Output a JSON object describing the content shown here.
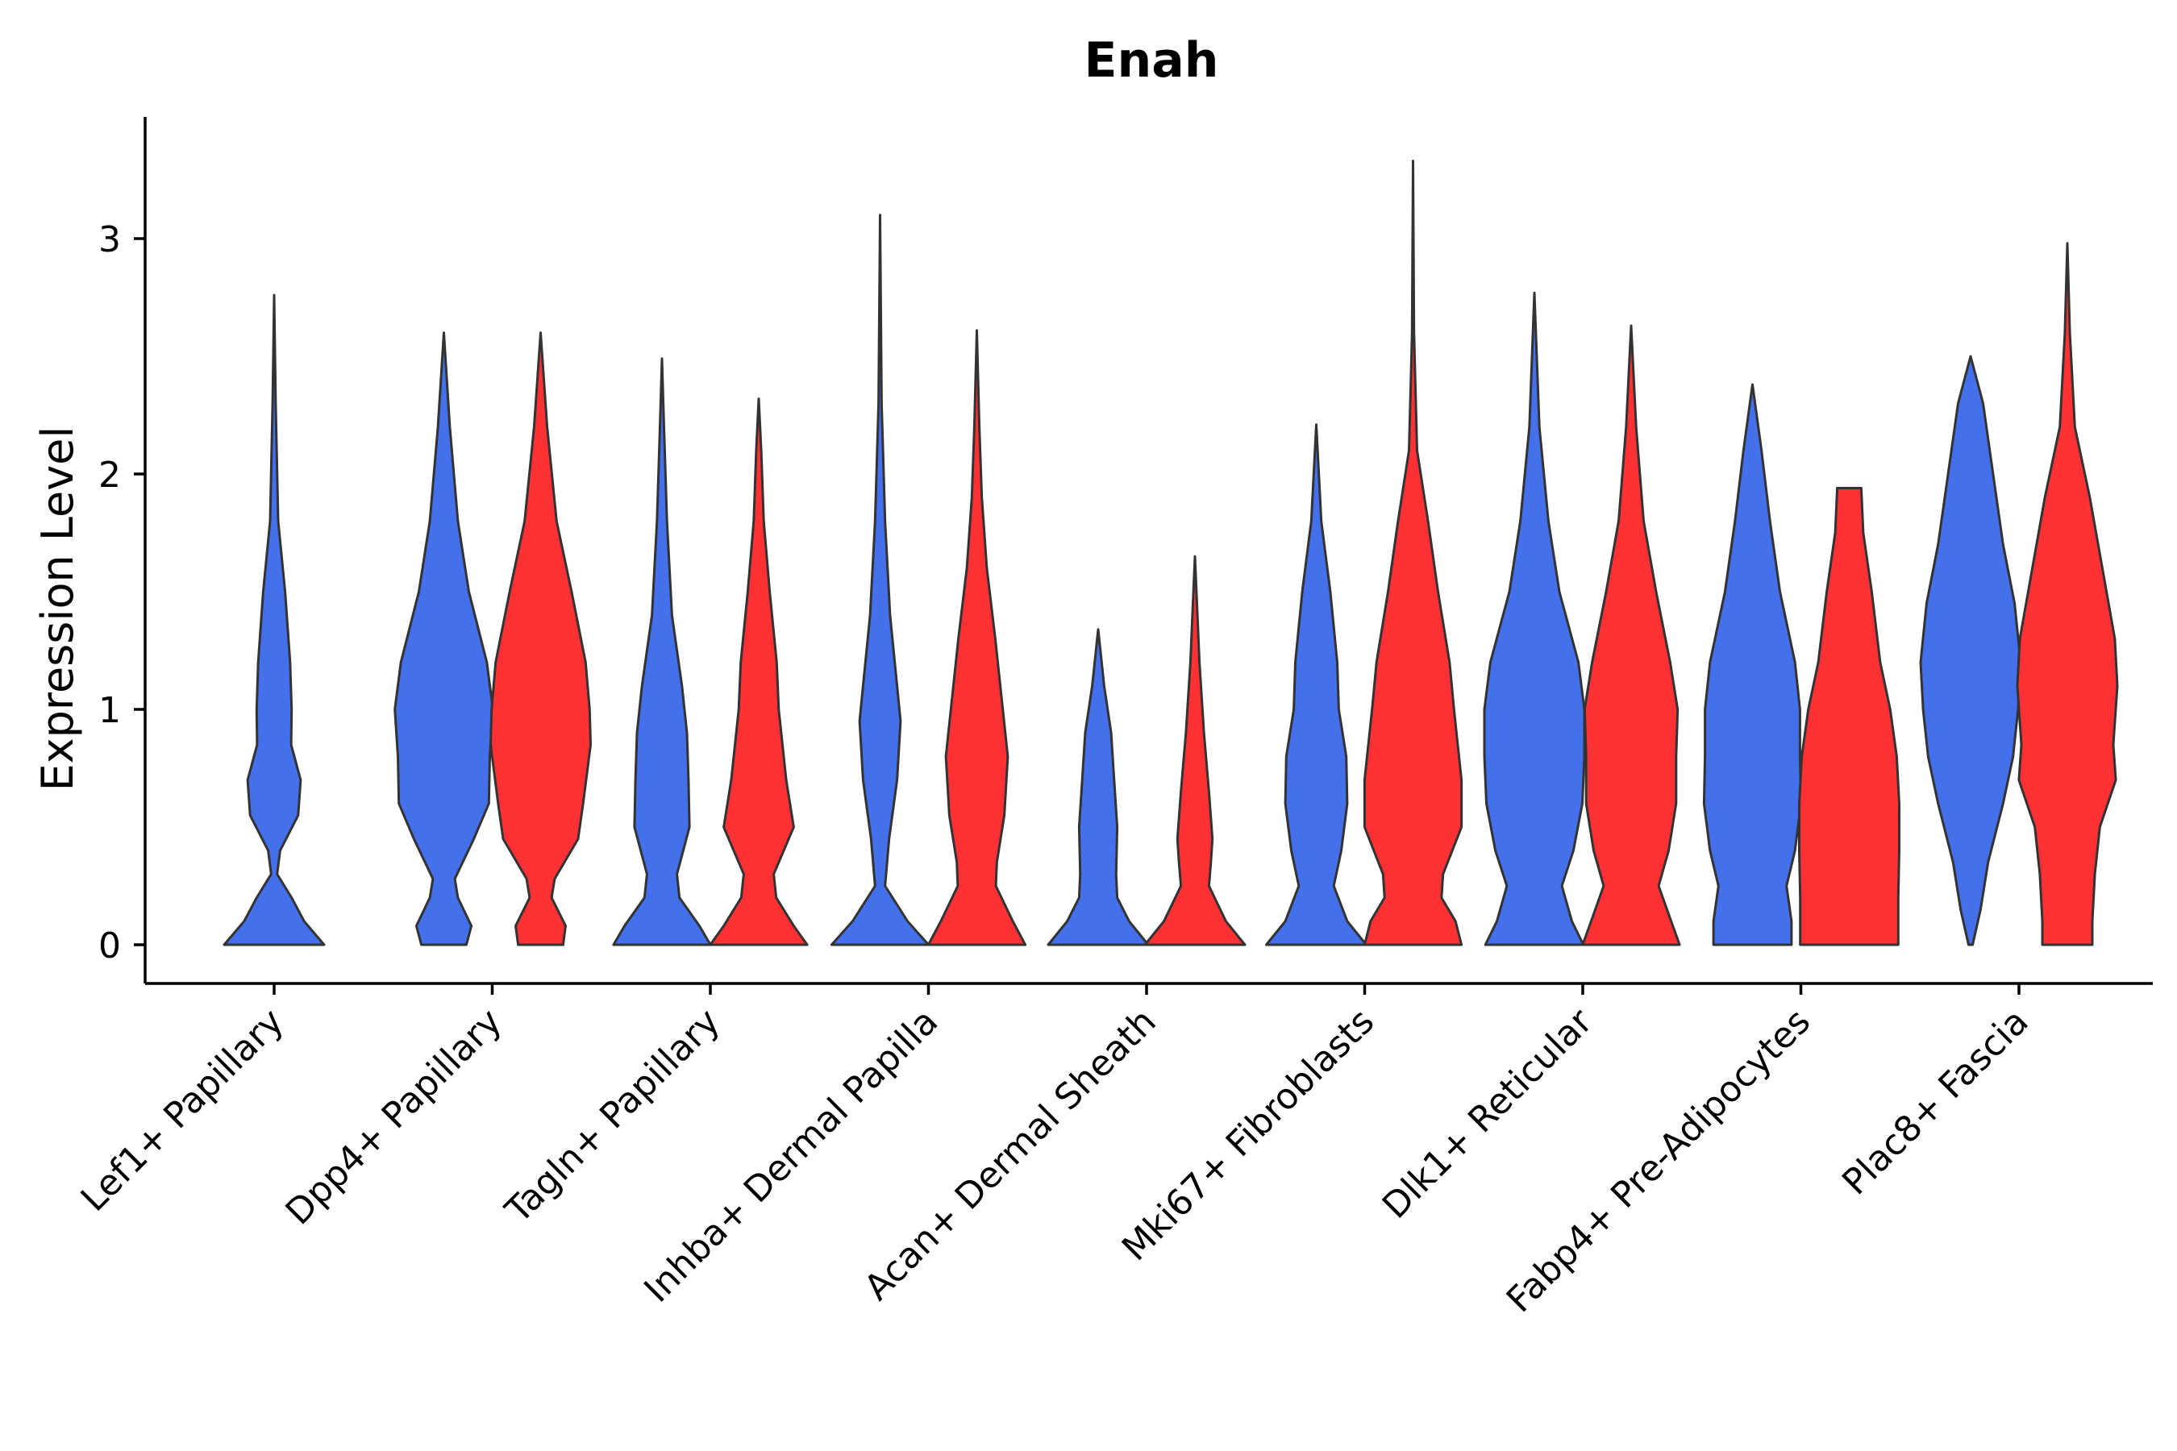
{
  "chart_data": {
    "type": "violin",
    "title": "Enah",
    "ylabel": "Expression Level",
    "xlabel": "",
    "ylim": [
      -0.17,
      3.5
    ],
    "yticks": [
      0,
      1,
      2,
      3
    ],
    "legend": "none",
    "colors": {
      "group1": "#4470EC",
      "group2": "#FF3134"
    },
    "categories": [
      "Lef1+ Papillary",
      "Dpp4+ Papillary",
      "Tagln+ Papillary",
      "Inhba+ Dermal Papilla",
      "Acan+ Dermal Sheath",
      "Mki67+ Fibroblasts",
      "Dlk1+ Reticular",
      "Fabp4+ Pre-Adipocytes",
      "Plac8+ Fascia"
    ],
    "violins": [
      {
        "category": "Lef1+ Papillary",
        "group": "group1",
        "max": 2.76,
        "profile": [
          [
            0,
            1.0
          ],
          [
            0.1,
            0.6
          ],
          [
            0.2,
            0.35
          ],
          [
            0.3,
            0.06
          ],
          [
            0.4,
            0.12
          ],
          [
            0.55,
            0.48
          ],
          [
            0.7,
            0.53
          ],
          [
            0.85,
            0.34
          ],
          [
            1.0,
            0.35
          ],
          [
            1.2,
            0.32
          ],
          [
            1.5,
            0.22
          ],
          [
            1.8,
            0.08
          ],
          [
            2.3,
            0.03
          ],
          [
            2.76,
            0.0
          ]
        ]
      },
      {
        "category": "Dpp4+ Papillary",
        "group": "group1",
        "max": 2.6,
        "profile": [
          [
            0,
            0.45
          ],
          [
            0.08,
            0.55
          ],
          [
            0.2,
            0.28
          ],
          [
            0.28,
            0.22
          ],
          [
            0.45,
            0.6
          ],
          [
            0.6,
            0.9
          ],
          [
            0.8,
            0.92
          ],
          [
            1.0,
            0.98
          ],
          [
            1.2,
            0.86
          ],
          [
            1.5,
            0.5
          ],
          [
            1.8,
            0.28
          ],
          [
            2.2,
            0.12
          ],
          [
            2.6,
            0.0
          ]
        ]
      },
      {
        "category": "Dpp4+ Papillary",
        "group": "group2",
        "max": 2.6,
        "profile": [
          [
            0,
            0.45
          ],
          [
            0.08,
            0.5
          ],
          [
            0.2,
            0.22
          ],
          [
            0.28,
            0.28
          ],
          [
            0.45,
            0.75
          ],
          [
            0.6,
            0.85
          ],
          [
            0.85,
            1.0
          ],
          [
            1.0,
            0.98
          ],
          [
            1.2,
            0.9
          ],
          [
            1.5,
            0.62
          ],
          [
            1.8,
            0.32
          ],
          [
            2.2,
            0.13
          ],
          [
            2.6,
            0.0
          ]
        ]
      },
      {
        "category": "Tagln+ Papillary",
        "group": "group1",
        "max": 2.49,
        "profile": [
          [
            0,
            0.97
          ],
          [
            0.08,
            0.75
          ],
          [
            0.2,
            0.35
          ],
          [
            0.3,
            0.3
          ],
          [
            0.5,
            0.55
          ],
          [
            0.7,
            0.53
          ],
          [
            0.9,
            0.5
          ],
          [
            1.1,
            0.4
          ],
          [
            1.4,
            0.2
          ],
          [
            1.8,
            0.1
          ],
          [
            2.2,
            0.04
          ],
          [
            2.49,
            0.0
          ]
        ]
      },
      {
        "category": "Tagln+ Papillary",
        "group": "group2",
        "max": 2.32,
        "profile": [
          [
            0,
            0.97
          ],
          [
            0.08,
            0.7
          ],
          [
            0.2,
            0.35
          ],
          [
            0.3,
            0.3
          ],
          [
            0.5,
            0.7
          ],
          [
            0.7,
            0.55
          ],
          [
            1.0,
            0.4
          ],
          [
            1.2,
            0.36
          ],
          [
            1.5,
            0.22
          ],
          [
            1.8,
            0.1
          ],
          [
            2.1,
            0.05
          ],
          [
            2.32,
            0.0
          ]
        ]
      },
      {
        "category": "Inhba+ Dermal Papilla",
        "group": "group1",
        "max": 3.1,
        "profile": [
          [
            0,
            0.97
          ],
          [
            0.1,
            0.55
          ],
          [
            0.25,
            0.1
          ],
          [
            0.45,
            0.18
          ],
          [
            0.7,
            0.34
          ],
          [
            0.95,
            0.41
          ],
          [
            1.1,
            0.34
          ],
          [
            1.4,
            0.2
          ],
          [
            1.8,
            0.1
          ],
          [
            2.3,
            0.03
          ],
          [
            3.1,
            0.0
          ]
        ]
      },
      {
        "category": "Inhba+ Dermal Papilla",
        "group": "group2",
        "max": 2.61,
        "profile": [
          [
            0,
            0.97
          ],
          [
            0.1,
            0.72
          ],
          [
            0.25,
            0.38
          ],
          [
            0.35,
            0.4
          ],
          [
            0.55,
            0.55
          ],
          [
            0.8,
            0.62
          ],
          [
            1.0,
            0.52
          ],
          [
            1.3,
            0.37
          ],
          [
            1.6,
            0.2
          ],
          [
            1.9,
            0.1
          ],
          [
            2.2,
            0.05
          ],
          [
            2.61,
            0.0
          ]
        ]
      },
      {
        "category": "Acan+ Dermal Sheath",
        "group": "group1",
        "max": 1.34,
        "profile": [
          [
            0,
            1.0
          ],
          [
            0.1,
            0.62
          ],
          [
            0.2,
            0.38
          ],
          [
            0.3,
            0.36
          ],
          [
            0.5,
            0.38
          ],
          [
            0.7,
            0.32
          ],
          [
            0.9,
            0.26
          ],
          [
            1.1,
            0.12
          ],
          [
            1.34,
            0.0
          ]
        ]
      },
      {
        "category": "Acan+ Dermal Sheath",
        "group": "group2",
        "max": 1.65,
        "profile": [
          [
            0,
            1.0
          ],
          [
            0.1,
            0.62
          ],
          [
            0.25,
            0.28
          ],
          [
            0.35,
            0.32
          ],
          [
            0.45,
            0.35
          ],
          [
            0.65,
            0.28
          ],
          [
            0.9,
            0.18
          ],
          [
            1.2,
            0.09
          ],
          [
            1.65,
            0.0
          ]
        ]
      },
      {
        "category": "Mki67+ Fibroblasts",
        "group": "group1",
        "max": 2.21,
        "profile": [
          [
            0,
            1.0
          ],
          [
            0.1,
            0.62
          ],
          [
            0.25,
            0.35
          ],
          [
            0.4,
            0.5
          ],
          [
            0.6,
            0.62
          ],
          [
            0.8,
            0.6
          ],
          [
            1.0,
            0.45
          ],
          [
            1.2,
            0.42
          ],
          [
            1.5,
            0.28
          ],
          [
            1.8,
            0.1
          ],
          [
            2.21,
            0.0
          ]
        ]
      },
      {
        "category": "Mki67+ Fibroblasts",
        "group": "group2",
        "max": 3.33,
        "profile": [
          [
            0,
            0.97
          ],
          [
            0.1,
            0.85
          ],
          [
            0.2,
            0.57
          ],
          [
            0.3,
            0.6
          ],
          [
            0.5,
            0.97
          ],
          [
            0.7,
            0.97
          ],
          [
            1.0,
            0.82
          ],
          [
            1.2,
            0.73
          ],
          [
            1.5,
            0.5
          ],
          [
            1.8,
            0.3
          ],
          [
            2.1,
            0.08
          ],
          [
            2.6,
            0.02
          ],
          [
            3.33,
            0.0
          ]
        ]
      },
      {
        "category": "Dlk1+ Reticular",
        "group": "group1",
        "max": 2.77,
        "profile": [
          [
            0,
            0.98
          ],
          [
            0.1,
            0.75
          ],
          [
            0.25,
            0.55
          ],
          [
            0.4,
            0.78
          ],
          [
            0.6,
            0.96
          ],
          [
            0.8,
            1.0
          ],
          [
            1.0,
            1.0
          ],
          [
            1.2,
            0.88
          ],
          [
            1.5,
            0.5
          ],
          [
            1.8,
            0.28
          ],
          [
            2.2,
            0.1
          ],
          [
            2.77,
            0.0
          ]
        ]
      },
      {
        "category": "Dlk1+ Reticular",
        "group": "group2",
        "max": 2.63,
        "profile": [
          [
            0,
            0.97
          ],
          [
            0.1,
            0.8
          ],
          [
            0.25,
            0.55
          ],
          [
            0.4,
            0.75
          ],
          [
            0.6,
            0.9
          ],
          [
            0.8,
            0.9
          ],
          [
            1.0,
            0.93
          ],
          [
            1.2,
            0.78
          ],
          [
            1.5,
            0.5
          ],
          [
            1.8,
            0.25
          ],
          [
            2.2,
            0.1
          ],
          [
            2.63,
            0.0
          ]
        ]
      },
      {
        "category": "Fabp4+ Pre-Adipocytes",
        "group": "group1",
        "max": 2.38,
        "profile": [
          [
            0,
            0.78
          ],
          [
            0.1,
            0.78
          ],
          [
            0.25,
            0.68
          ],
          [
            0.4,
            0.85
          ],
          [
            0.6,
            0.97
          ],
          [
            0.8,
            0.95
          ],
          [
            1.0,
            0.95
          ],
          [
            1.2,
            0.85
          ],
          [
            1.5,
            0.55
          ],
          [
            1.8,
            0.35
          ],
          [
            2.1,
            0.18
          ],
          [
            2.38,
            0.0
          ]
        ]
      },
      {
        "category": "Fabp4+ Pre-Adipocytes",
        "group": "group2",
        "max": 1.94,
        "profile": [
          [
            0,
            0.98
          ],
          [
            0.2,
            0.98
          ],
          [
            0.4,
            1.0
          ],
          [
            0.6,
            1.0
          ],
          [
            0.8,
            0.95
          ],
          [
            1.0,
            0.82
          ],
          [
            1.2,
            0.62
          ],
          [
            1.5,
            0.45
          ],
          [
            1.75,
            0.28
          ],
          [
            1.94,
            0.24
          ]
        ]
      },
      {
        "category": "Plac8+ Fascia",
        "group": "group1",
        "max": 2.5,
        "profile": [
          [
            0,
            0.04
          ],
          [
            0.15,
            0.2
          ],
          [
            0.35,
            0.35
          ],
          [
            0.6,
            0.65
          ],
          [
            0.8,
            0.85
          ],
          [
            1.0,
            0.95
          ],
          [
            1.2,
            1.0
          ],
          [
            1.45,
            0.88
          ],
          [
            1.7,
            0.65
          ],
          [
            2.0,
            0.45
          ],
          [
            2.3,
            0.25
          ],
          [
            2.5,
            0.0
          ]
        ]
      },
      {
        "category": "Plac8+ Fascia",
        "group": "group2",
        "max": 2.98,
        "profile": [
          [
            0,
            0.5
          ],
          [
            0.1,
            0.5
          ],
          [
            0.3,
            0.55
          ],
          [
            0.5,
            0.65
          ],
          [
            0.7,
            0.97
          ],
          [
            0.85,
            0.92
          ],
          [
            1.1,
            1.0
          ],
          [
            1.3,
            0.95
          ],
          [
            1.6,
            0.7
          ],
          [
            1.9,
            0.45
          ],
          [
            2.2,
            0.15
          ],
          [
            2.6,
            0.05
          ],
          [
            2.98,
            0.0
          ]
        ]
      }
    ]
  }
}
